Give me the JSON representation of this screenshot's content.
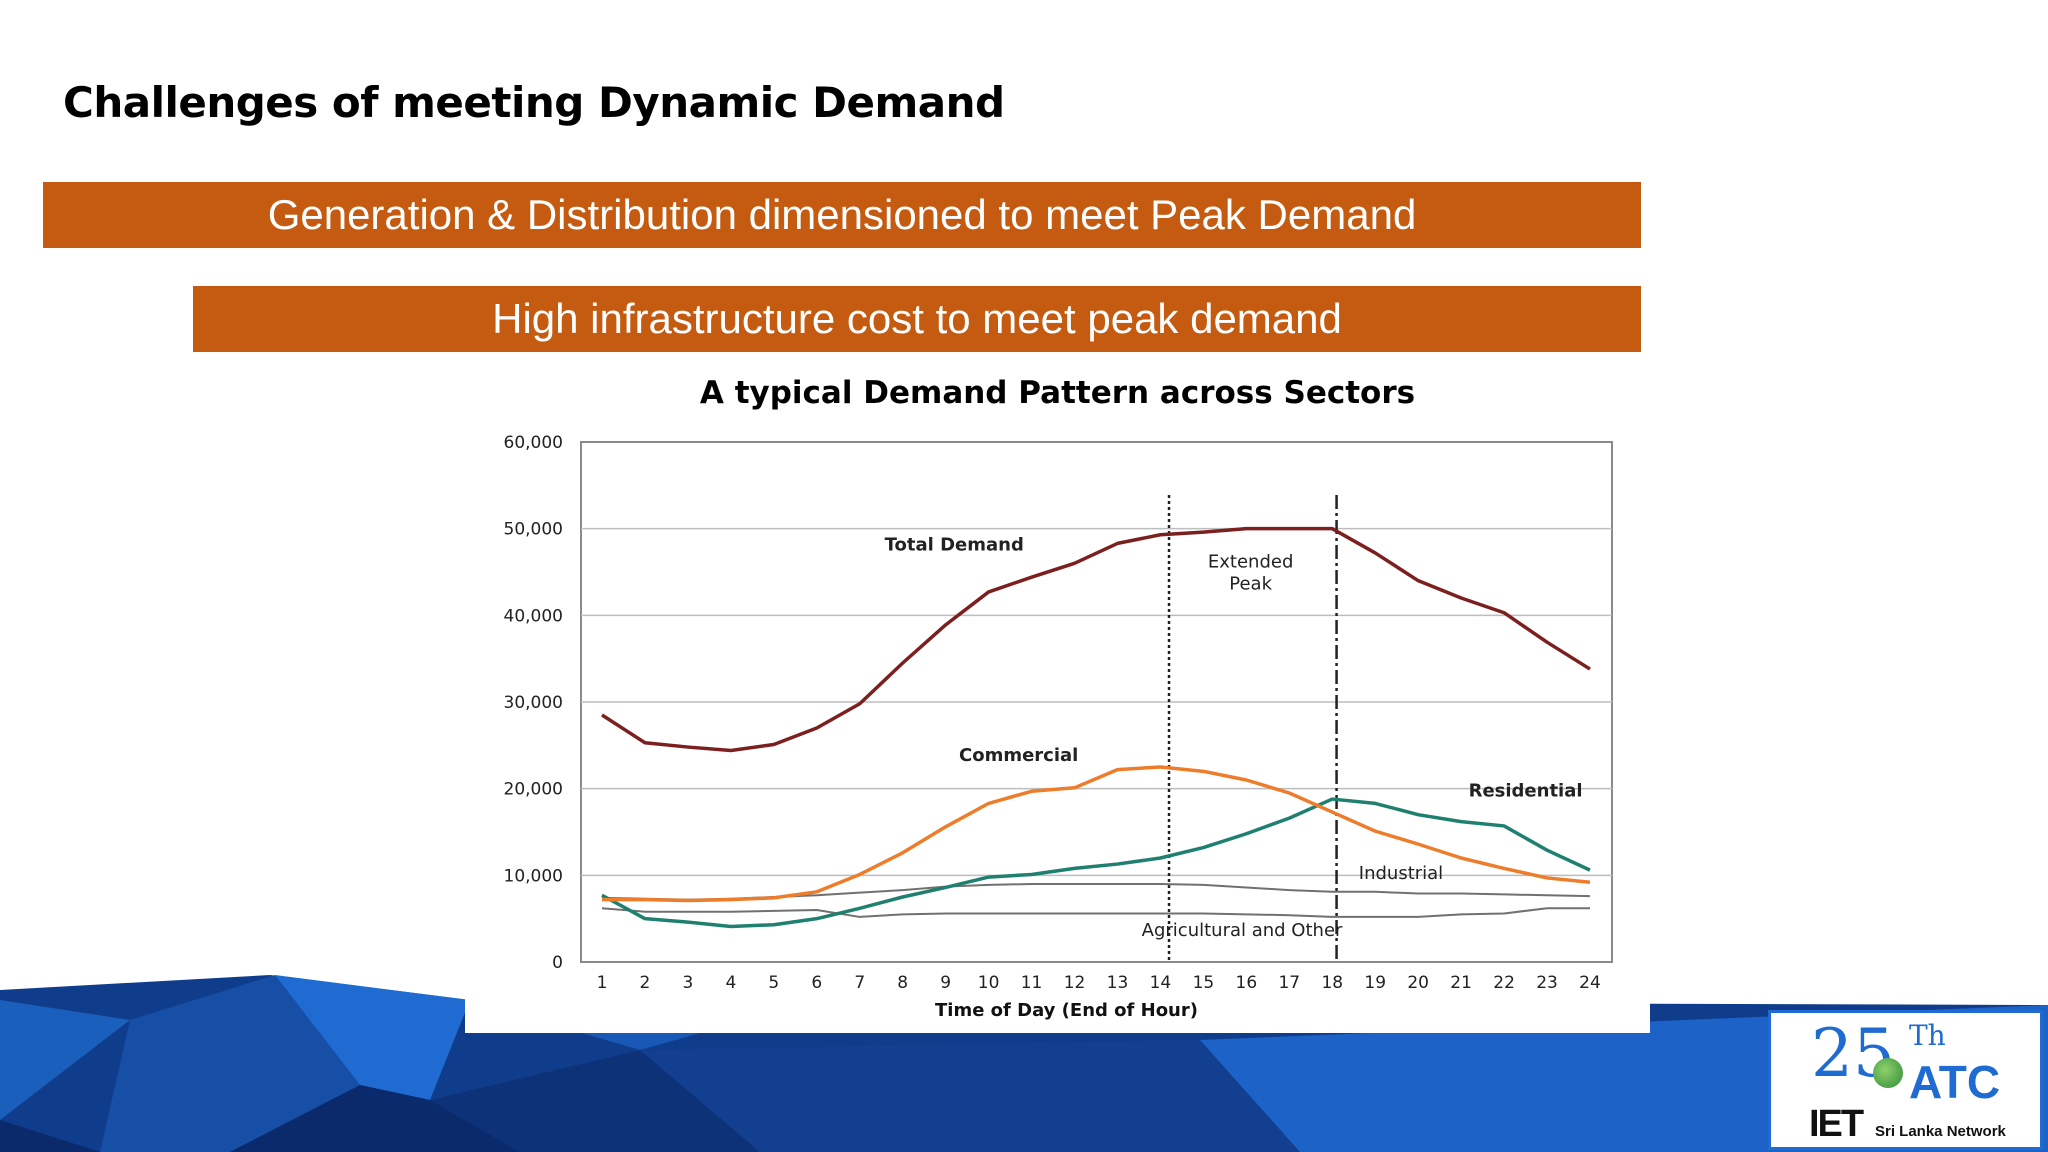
{
  "slide": {
    "title": "Challenges of meeting Dynamic Demand",
    "banner_1": "Generation & Distribution dimensioned to meet Peak Demand",
    "banner_2": "High infrastructure cost to meet peak demand",
    "colors": {
      "banner": "#c55a11",
      "footer_blue": "#1f6bd1",
      "footer_dark": "#0a2a6b"
    }
  },
  "logo": {
    "number": "25",
    "suffix": "Th",
    "acronym": "ATC",
    "org": "IET",
    "network": "Sri Lanka Network"
  },
  "chart_data": {
    "type": "line",
    "title": "A typical Demand Pattern across Sectors",
    "xlabel": "Time of Day (End of Hour)",
    "ylabel": "",
    "ylim": [
      0,
      60000
    ],
    "xlim": [
      1,
      24
    ],
    "grid": true,
    "yticks": [
      "0",
      "10,000",
      "20,000",
      "30,000",
      "40,000",
      "50,000",
      "60,000"
    ],
    "y_tick_values": [
      0,
      10000,
      20000,
      30000,
      40000,
      50000,
      60000
    ],
    "x": [
      1,
      2,
      3,
      4,
      5,
      6,
      7,
      8,
      9,
      10,
      11,
      12,
      13,
      14,
      15,
      16,
      17,
      18,
      19,
      20,
      21,
      22,
      23,
      24
    ],
    "series": [
      {
        "name": "Total Demand",
        "color": "#7b1f1f",
        "values": [
          28500,
          25300,
          24800,
          24400,
          25100,
          27000,
          29800,
          34500,
          38900,
          42700,
          44400,
          46000,
          48300,
          49300,
          49600,
          50000,
          50000,
          50000,
          47200,
          44000,
          42000,
          40300,
          36900,
          33800
        ]
      },
      {
        "name": "Commercial",
        "color": "#ee7d2b",
        "values": [
          7200,
          7200,
          7100,
          7200,
          7400,
          8100,
          10100,
          12600,
          15600,
          18300,
          19700,
          20100,
          22200,
          22500,
          22000,
          21000,
          19500,
          17300,
          15100,
          13600,
          12000,
          10800,
          9700,
          9200
        ]
      },
      {
        "name": "Residential",
        "color": "#1f8070",
        "values": [
          7700,
          5000,
          4600,
          4100,
          4300,
          5000,
          6200,
          7500,
          8600,
          9800,
          10100,
          10800,
          11300,
          12000,
          13200,
          14800,
          16600,
          18800,
          18300,
          17000,
          16200,
          15700,
          12900,
          10600
        ]
      },
      {
        "name": "Industrial",
        "color": "#707070",
        "values": [
          7400,
          7300,
          7200,
          7300,
          7500,
          7700,
          8000,
          8300,
          8700,
          8900,
          9000,
          9000,
          9000,
          9000,
          8900,
          8600,
          8300,
          8100,
          8100,
          7900,
          7900,
          7800,
          7700,
          7600
        ]
      },
      {
        "name": "Agricultural and Other",
        "color": "#707070",
        "values": [
          6200,
          5800,
          5800,
          5800,
          5900,
          6000,
          5200,
          5500,
          5600,
          5600,
          5600,
          5600,
          5600,
          5600,
          5600,
          5500,
          5400,
          5200,
          5200,
          5200,
          5500,
          5600,
          6200,
          6200
        ]
      }
    ],
    "vertical_lines": [
      {
        "x": 14.2,
        "style": "dotted"
      },
      {
        "x": 18.1,
        "style": "dashdot"
      }
    ],
    "annotations": [
      {
        "text": "Total Demand",
        "x": 9.2,
        "y": 47500,
        "bold": true
      },
      {
        "text": "Extended",
        "x": 16.1,
        "y": 45500,
        "bold": false
      },
      {
        "text": "Peak",
        "x": 16.1,
        "y": 43000,
        "bold": false
      },
      {
        "text": "Commercial",
        "x": 10.7,
        "y": 23200,
        "bold": true
      },
      {
        "text": "Residential",
        "x": 22.5,
        "y": 19100,
        "bold": true
      },
      {
        "text": "Industrial",
        "x": 19.6,
        "y": 9600,
        "bold": false
      },
      {
        "text": "Agricultural and Other",
        "x": 15.9,
        "y": 3000,
        "bold": false
      }
    ]
  }
}
